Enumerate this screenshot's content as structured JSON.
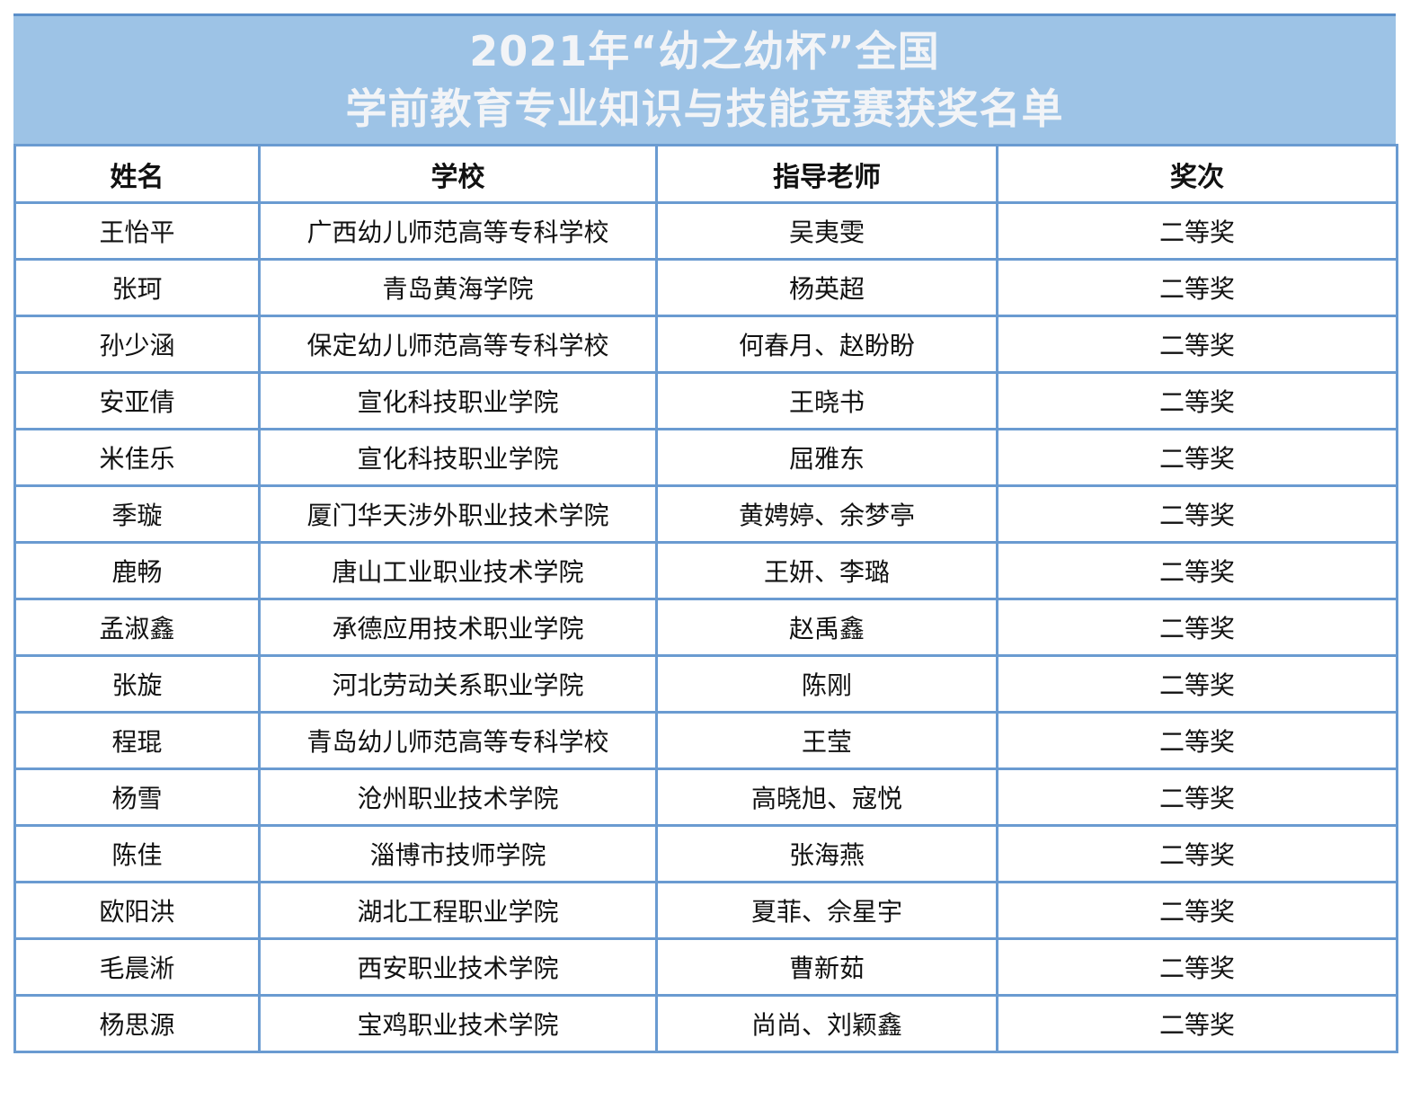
{
  "title": {
    "line1": "2021年“幼之幼杯”全国",
    "line2": "学前教育专业知识与技能竞赛获奖名单"
  },
  "columns": [
    "姓名",
    "学校",
    "指导老师",
    "奖次"
  ],
  "rows": [
    [
      "王怡平",
      "广西幼儿师范高等专科学校",
      "吴夷雯",
      "二等奖"
    ],
    [
      "张珂",
      "青岛黄海学院",
      "杨英超",
      "二等奖"
    ],
    [
      "孙少涵",
      "保定幼儿师范高等专科学校",
      "何春月、赵盼盼",
      "二等奖"
    ],
    [
      "安亚倩",
      "宣化科技职业学院",
      "王晓书",
      "二等奖"
    ],
    [
      "米佳乐",
      "宣化科技职业学院",
      "屈雅东",
      "二等奖"
    ],
    [
      "季璇",
      "厦门华天涉外职业技术学院",
      "黄娉婷、余梦亭",
      "二等奖"
    ],
    [
      "鹿畅",
      "唐山工业职业技术学院",
      "王妍、李璐",
      "二等奖"
    ],
    [
      "孟淑鑫",
      "承德应用技术职业学院",
      "赵禹鑫",
      "二等奖"
    ],
    [
      "张旋",
      "河北劳动关系职业学院",
      "陈刚",
      "二等奖"
    ],
    [
      "程琨",
      "青岛幼儿师范高等专科学校",
      "王莹",
      "二等奖"
    ],
    [
      "杨雪",
      "沧州职业技术学院",
      "高晓旭、寇悦",
      "二等奖"
    ],
    [
      "陈佳",
      "淄博市技师学院",
      "张海燕",
      "二等奖"
    ],
    [
      "欧阳洪",
      "湖北工程职业学院",
      "夏菲、佘星宇",
      "二等奖"
    ],
    [
      "毛晨淅",
      "西安职业技术学院",
      "曹新茹",
      "二等奖"
    ],
    [
      "杨思源",
      "宝鸡职业技术学院",
      "尚尚、刘颖鑫",
      "二等奖"
    ]
  ]
}
